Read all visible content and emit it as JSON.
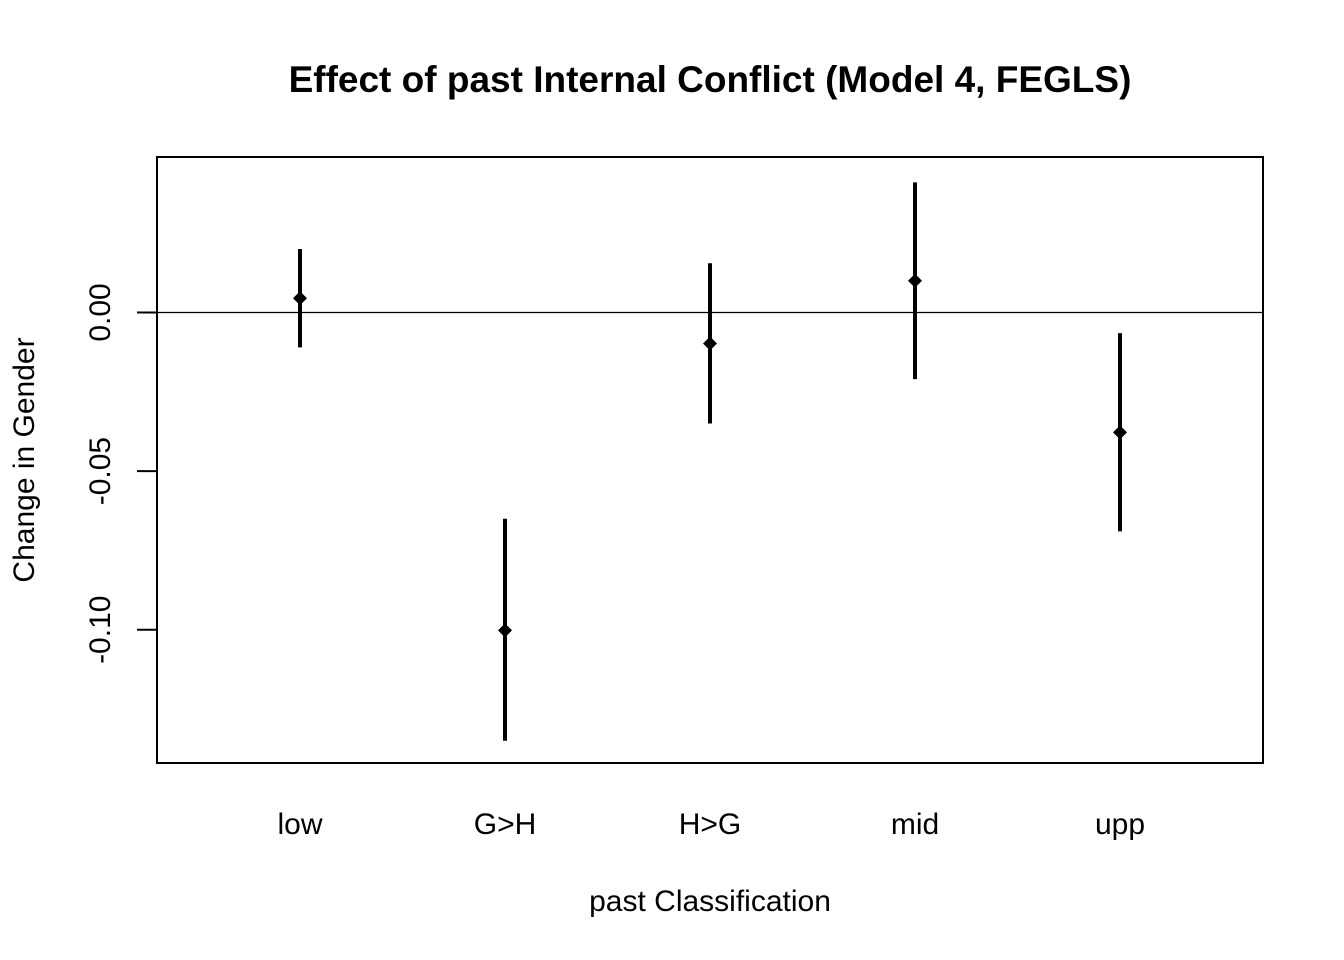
{
  "chart_data": {
    "type": "scatter",
    "title": "Effect of past Internal Conflict (Model 4, FEGLS)",
    "xlabel": "past Classification",
    "ylabel": "Change in Gender",
    "categories": [
      "low",
      "G>H",
      "H>G",
      "mid",
      "upp"
    ],
    "estimates": [
      0.0045,
      -0.1002,
      -0.0098,
      0.01,
      -0.0378
    ],
    "lower": [
      -0.011,
      -0.135,
      -0.035,
      -0.021,
      -0.069
    ],
    "upper": [
      0.02,
      -0.065,
      0.0155,
      0.041,
      -0.0065
    ],
    "yticks": [
      0.0,
      -0.05,
      -0.1
    ],
    "ytick_labels": [
      "0.00",
      "-0.05",
      "-0.10"
    ],
    "ylim": [
      -0.142,
      0.049
    ],
    "reference_line": 0,
    "grid": false,
    "marker": "diamond",
    "color": "#000000"
  }
}
